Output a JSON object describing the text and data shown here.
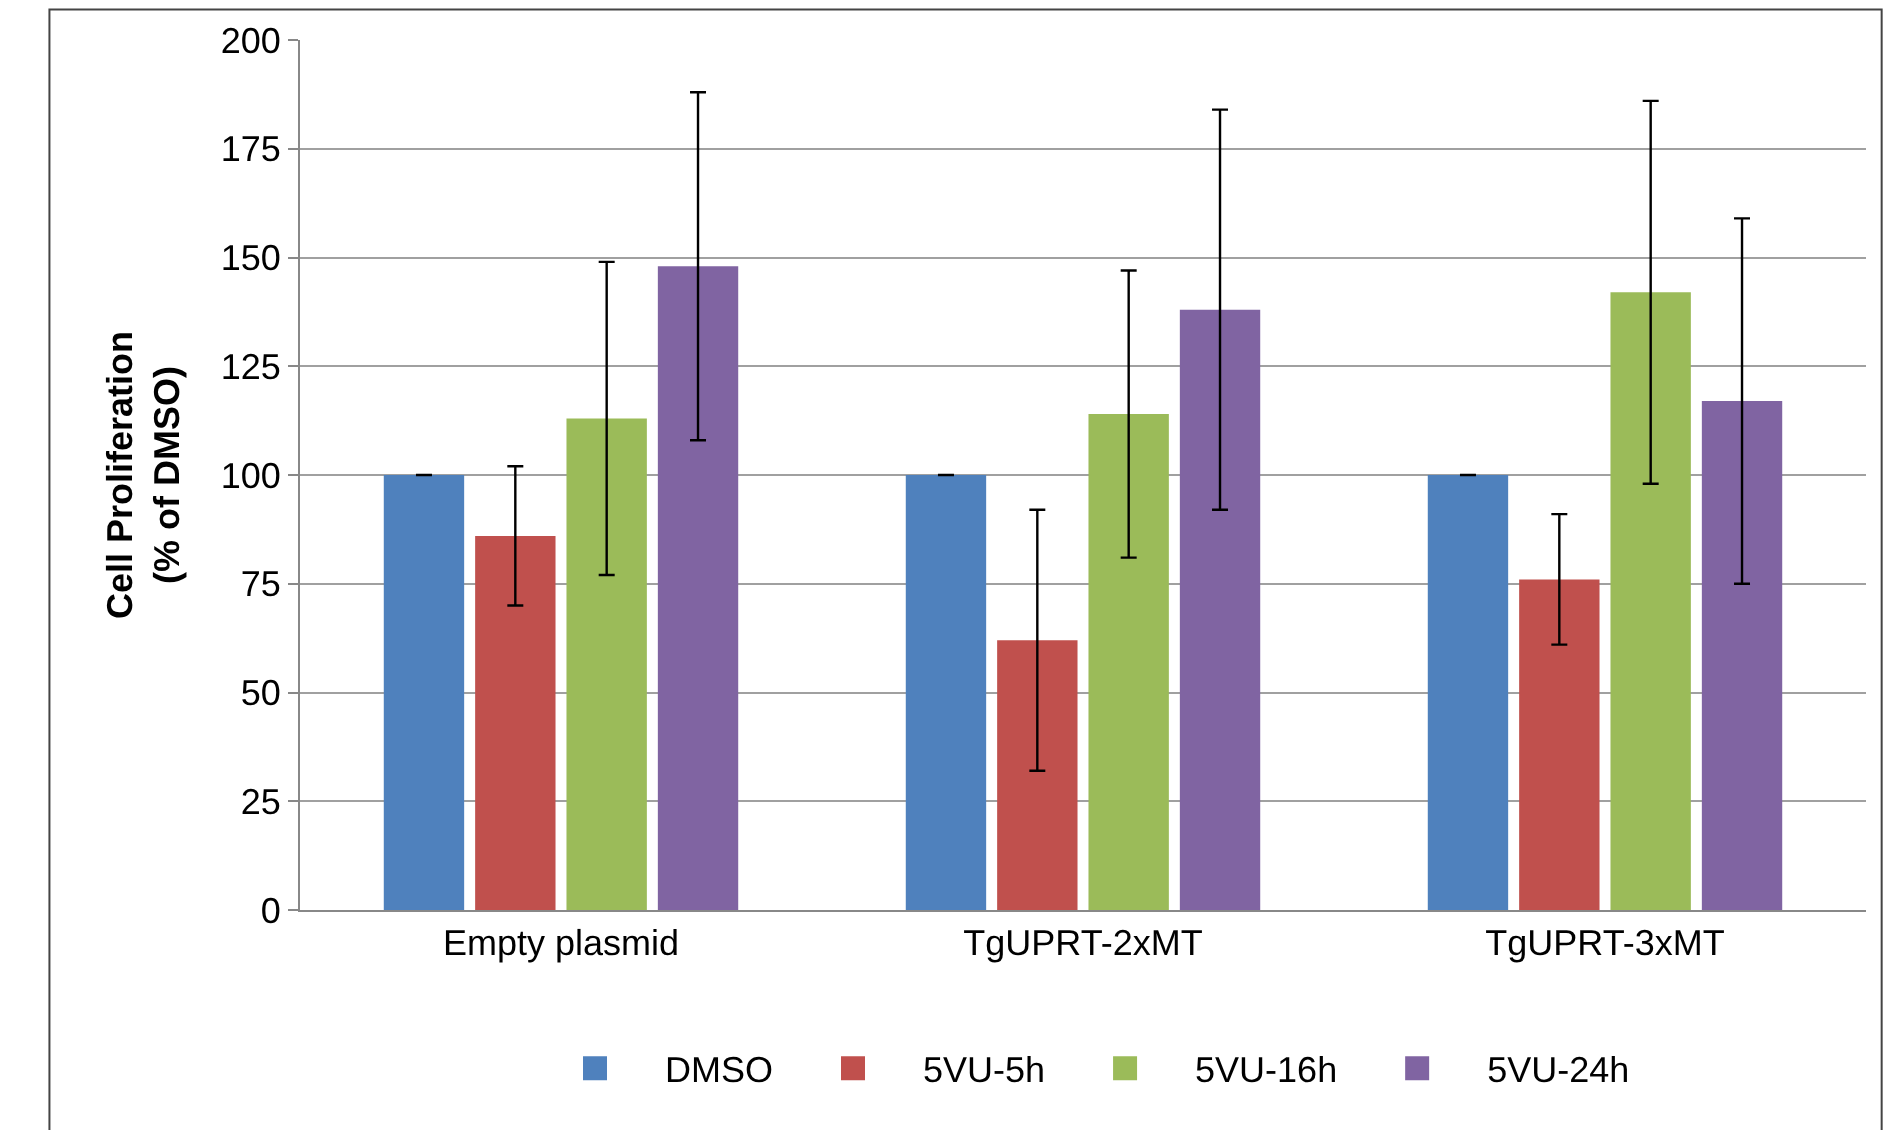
{
  "chart_data": {
    "type": "bar",
    "ylabel": "Cell Proliferation\n(% of DMSO)",
    "categories": [
      "Empty plasmid",
      "TgUPRT-2xMT",
      "TgUPRT-3xMT"
    ],
    "series": [
      {
        "name": "DMSO",
        "color": "#4f81bd",
        "values": [
          100,
          100,
          100
        ],
        "errors": [
          0,
          0,
          0
        ]
      },
      {
        "name": "5VU-5h",
        "color": "#c0504d",
        "values": [
          86,
          62,
          76
        ],
        "errors": [
          16,
          30,
          15
        ]
      },
      {
        "name": "5VU-16h",
        "color": "#9bbb59",
        "values": [
          113,
          114,
          142
        ],
        "errors": [
          36,
          33,
          44
        ]
      },
      {
        "name": "5VU-24h",
        "color": "#8064a2",
        "values": [
          148,
          138,
          117
        ],
        "errors": [
          40,
          46,
          42
        ]
      }
    ],
    "ylim": [
      0,
      200
    ],
    "yticks": [
      0,
      25,
      50,
      75,
      100,
      125,
      150,
      175,
      200
    ],
    "grid": "y",
    "legend": "bottom"
  }
}
